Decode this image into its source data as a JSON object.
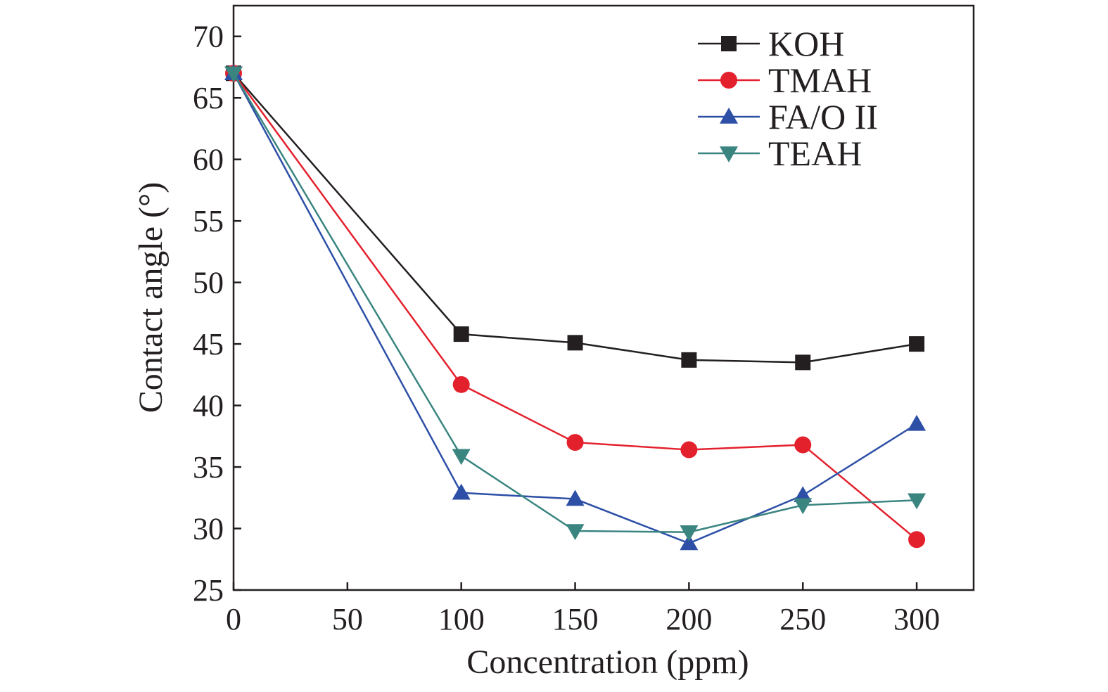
{
  "chart_data": {
    "type": "line",
    "xlabel": "Concentration (ppm)",
    "ylabel": "Contact angle (°)",
    "xlim": [
      0,
      325
    ],
    "ylim": [
      25,
      72.5
    ],
    "xticks": [
      0,
      50,
      100,
      150,
      200,
      250,
      300
    ],
    "yticks": [
      25,
      30,
      35,
      40,
      45,
      50,
      55,
      60,
      65,
      70
    ],
    "x": [
      0,
      100,
      150,
      200,
      250,
      300
    ],
    "grid": false,
    "legend_position": "top-right",
    "series": [
      {
        "name": "KOH",
        "color": "#231f20",
        "marker": "square",
        "values": [
          67.0,
          45.8,
          45.1,
          43.7,
          43.5,
          45.0
        ]
      },
      {
        "name": "TMAH",
        "color": "#e3212d",
        "marker": "circle",
        "values": [
          67.0,
          41.7,
          37.0,
          36.4,
          36.8,
          29.1
        ]
      },
      {
        "name": "FA/O II",
        "color": "#2d4fa6",
        "marker": "triangle-up",
        "values": [
          67.0,
          32.9,
          32.4,
          28.8,
          32.7,
          38.5
        ]
      },
      {
        "name": "TEAH",
        "color": "#3a8580",
        "marker": "triangle-down",
        "values": [
          67.0,
          35.9,
          29.8,
          29.7,
          31.9,
          32.3
        ]
      }
    ]
  }
}
